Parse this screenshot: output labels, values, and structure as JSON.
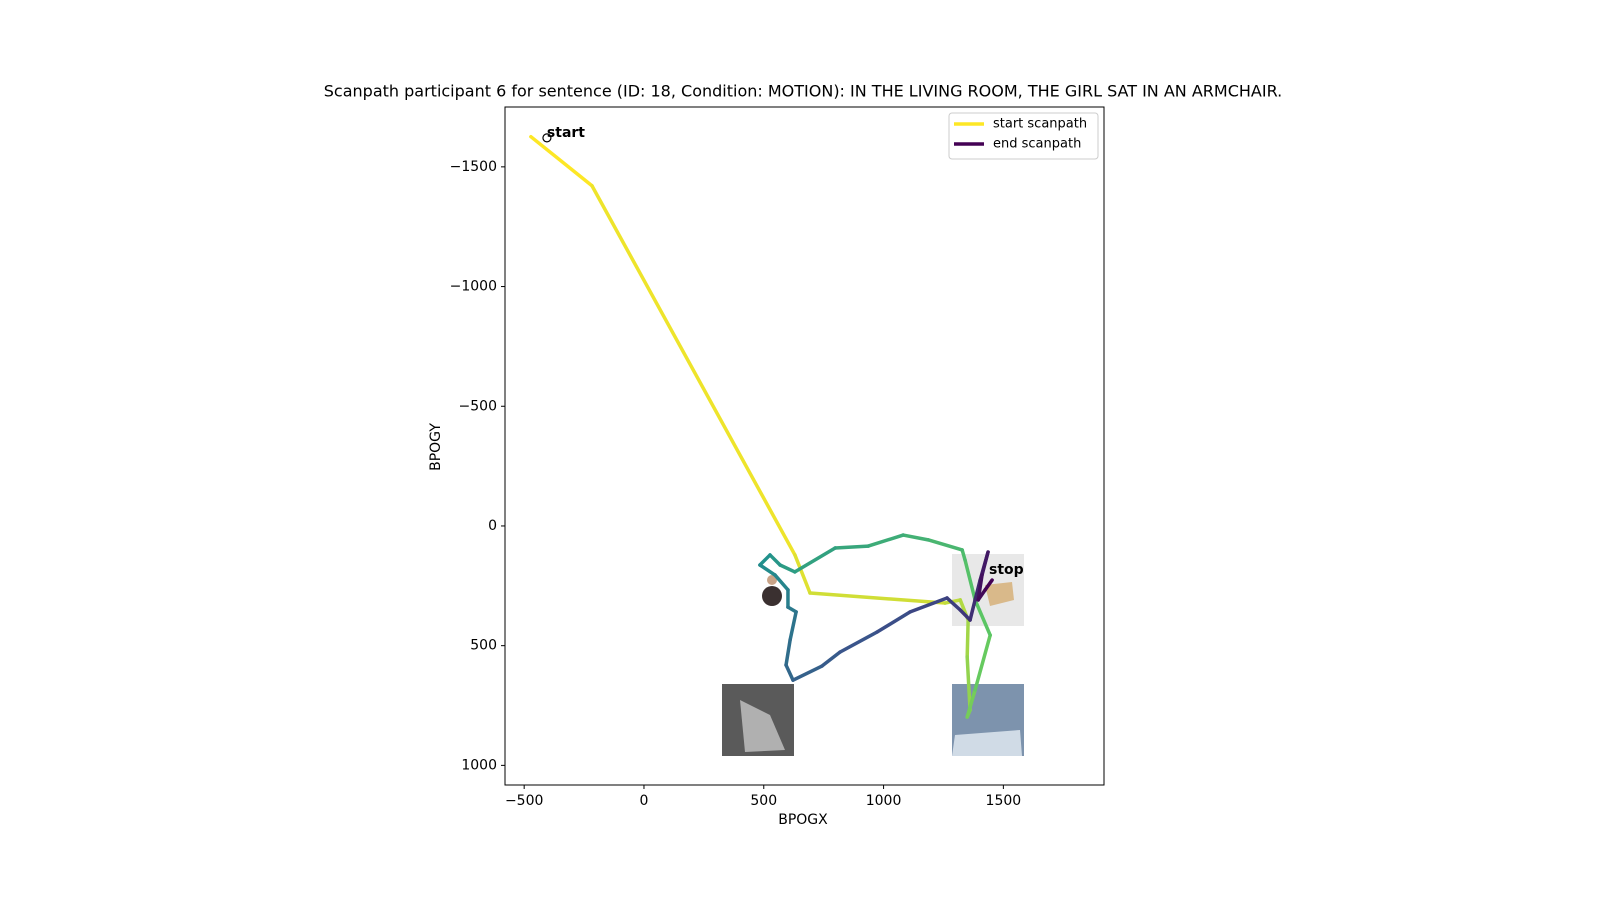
{
  "chart_data": {
    "type": "scanpath",
    "title": "Scanpath participant 6 for sentence (ID: 18, Condition: MOTION):  IN THE LIVING ROOM, THE GIRL SAT IN AN ARMCHAIR.",
    "x_label": "BPOGX",
    "y_label": "BPOGY",
    "xlim": [
      -580,
      1920
    ],
    "ylim": [
      1082,
      -1750
    ],
    "xticks": [
      {
        "value": -500,
        "label": "−500"
      },
      0,
      500,
      1000,
      1500
    ],
    "yticks": [
      {
        "value": -1500,
        "label": "−1500"
      },
      {
        "value": -1000,
        "label": "−1000"
      },
      {
        "value": -500,
        "label": "−500"
      },
      0,
      500,
      1000
    ],
    "x": [
      -472,
      -217,
      630,
      693,
      1257,
      1320,
      1353,
      1349,
      1361,
      1349,
      1382,
      1445,
      1382,
      1340,
      1328,
      1186,
      1082,
      936,
      798,
      630,
      568,
      526,
      484,
      547,
      601,
      601,
      635,
      610,
      593,
      622,
      743,
      818,
      973,
      1111,
      1265,
      1320,
      1361,
      1382,
      1403,
      1436,
      1411,
      1395,
      1424,
      1453
    ],
    "y": [
      -1626,
      -1421,
      121,
      280,
      322,
      309,
      393,
      547,
      769,
      798,
      685,
      456,
      309,
      142,
      100,
      58,
      38,
      84,
      92,
      192,
      163,
      121,
      163,
      205,
      267,
      339,
      359,
      476,
      581,
      644,
      585,
      527,
      443,
      359,
      301,
      351,
      393,
      309,
      226,
      109,
      205,
      309,
      267,
      226
    ],
    "colormap": [
      "#fde725",
      "#5ec962",
      "#21918c",
      "#3b528b",
      "#440154"
    ],
    "annotations": [
      {
        "text": "start",
        "x": -405,
        "y": -1621
      },
      {
        "text": "stop",
        "x": 1440,
        "y": 205
      }
    ],
    "legend_loc": "upper right",
    "legend": [
      {
        "name": "start scanpath",
        "color": "#fde725"
      },
      {
        "name": "end scanpath",
        "color": "#440154"
      }
    ]
  }
}
